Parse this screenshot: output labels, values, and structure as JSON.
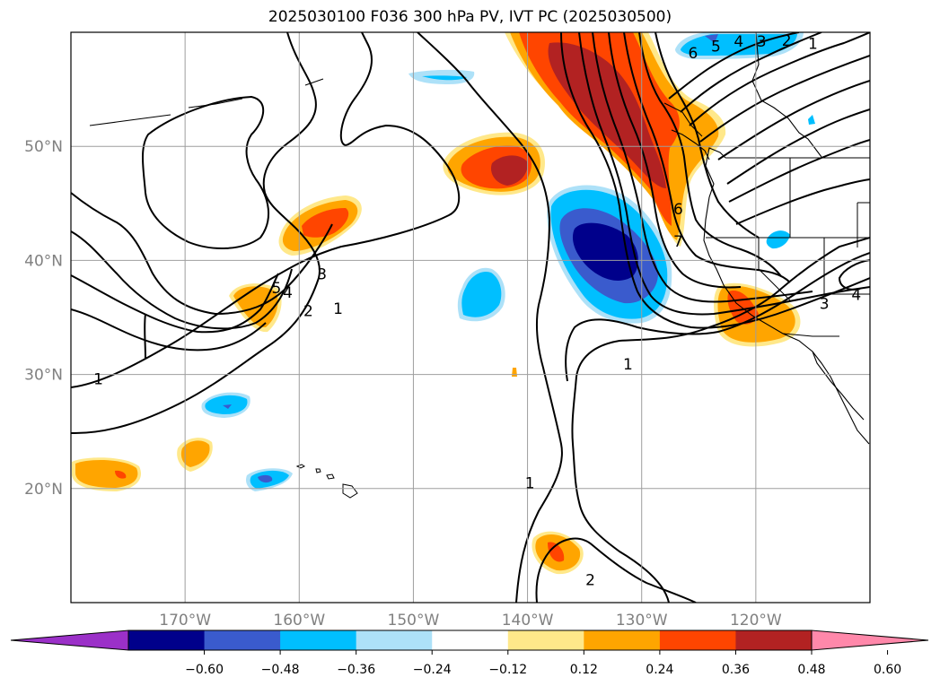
{
  "title": "2025030100 F036 300 hPa PV, IVT PC (2025030500)",
  "map": {
    "lon_ticks": [
      {
        "lon": -170,
        "label": "170°W"
      },
      {
        "lon": -160,
        "label": "160°W"
      },
      {
        "lon": -150,
        "label": "150°W"
      },
      {
        "lon": -140,
        "label": "140°W"
      },
      {
        "lon": -130,
        "label": "130°W"
      },
      {
        "lon": -120,
        "label": "120°W"
      }
    ],
    "lat_ticks": [
      {
        "lat": 50,
        "label": "50°N"
      },
      {
        "lat": 40,
        "label": "40°N"
      },
      {
        "lat": 30,
        "label": "30°N"
      },
      {
        "lat": 20,
        "label": "20°N"
      }
    ],
    "extent": {
      "lon": [
        -180,
        -110
      ],
      "lat": [
        10,
        60
      ]
    },
    "grid": true
  },
  "colorbar": {
    "colors": [
      "#9b30c8",
      "#00008b",
      "#3a5bcd",
      "#00bfff",
      "#ade1f8",
      "#ffffff",
      "#ffe88a",
      "#ffa500",
      "#ff4500",
      "#b22222",
      "#ff88aa"
    ],
    "labels": [
      "−0.60",
      "−0.48",
      "−0.36",
      "−0.24",
      "−0.12",
      "0.12",
      "0.24",
      "0.36",
      "0.48",
      "0.60"
    ],
    "extend": "both"
  },
  "contour_labels": [
    {
      "text": "1",
      "lon": -177.6,
      "lat": 29.6
    },
    {
      "text": "5",
      "lon": -162.0,
      "lat": 37.6
    },
    {
      "text": "4",
      "lon": -161.0,
      "lat": 37.2
    },
    {
      "text": "3",
      "lon": -158.0,
      "lat": 38.8
    },
    {
      "text": "2",
      "lon": -159.2,
      "lat": 35.6
    },
    {
      "text": "1",
      "lon": -156.6,
      "lat": 35.8
    },
    {
      "text": "1",
      "lon": -131.2,
      "lat": 30.9
    },
    {
      "text": "1",
      "lon": -139.8,
      "lat": 20.5
    },
    {
      "text": "2",
      "lon": -134.5,
      "lat": 12.0
    },
    {
      "text": "6",
      "lon": -126.8,
      "lat": 44.5
    },
    {
      "text": "7",
      "lon": -126.8,
      "lat": 41.7
    },
    {
      "text": "6",
      "lon": -125.5,
      "lat": 58.2
    },
    {
      "text": "5",
      "lon": -123.5,
      "lat": 58.8
    },
    {
      "text": "4",
      "lon": -121.5,
      "lat": 59.2
    },
    {
      "text": "3",
      "lon": -119.5,
      "lat": 59.2
    },
    {
      "text": "2",
      "lon": -117.3,
      "lat": 59.3
    },
    {
      "text": "1",
      "lon": -115.0,
      "lat": 59.0
    },
    {
      "text": "3",
      "lon": -114.0,
      "lat": 36.2
    },
    {
      "text": "4",
      "lon": -111.2,
      "lat": 37.0
    }
  ]
}
